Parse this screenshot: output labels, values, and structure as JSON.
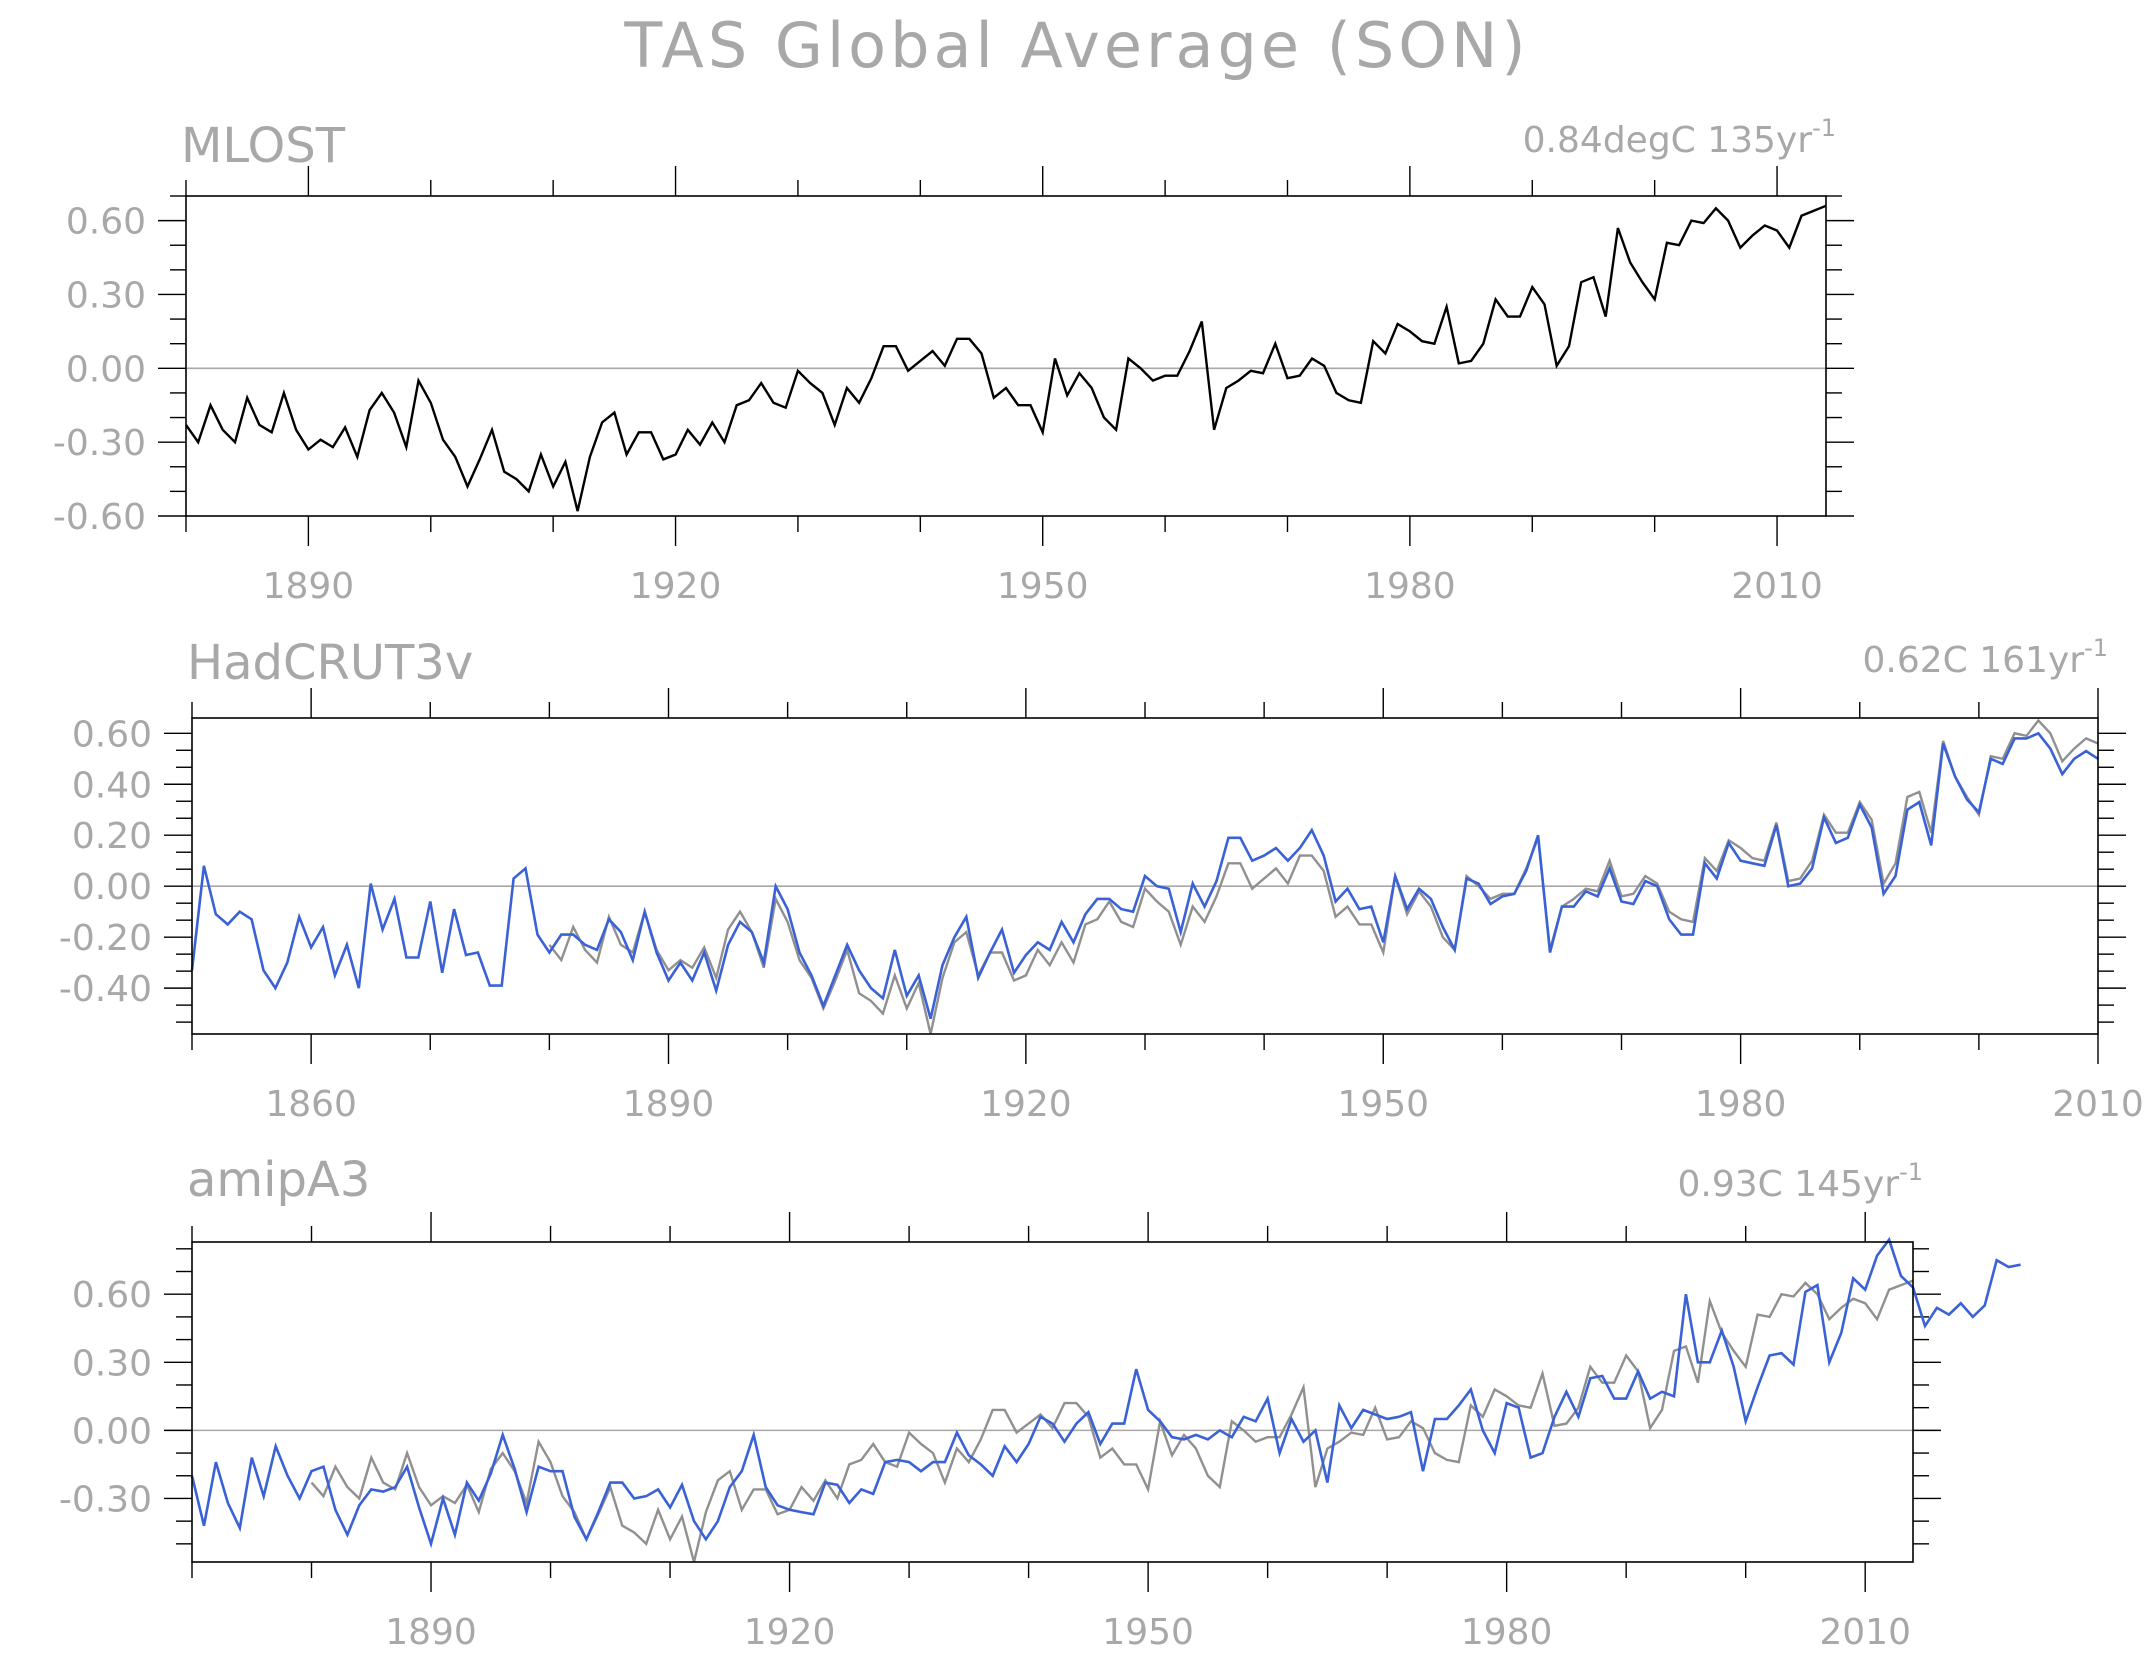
{
  "title": "TAS Global Average (SON)",
  "colors": {
    "obs": "#000000",
    "ref": "#909090",
    "model": "#3a62d6",
    "text": "#a8a8a8"
  },
  "chart_data": [
    {
      "type": "line",
      "name": "MLOST",
      "trend_text": "0.84degC 135yr",
      "trend_sup": "-1",
      "xlim": [
        1880,
        2014
      ],
      "ylim": [
        -0.6,
        0.7
      ],
      "xticks": [
        1890,
        1920,
        1950,
        1980,
        2010
      ],
      "yticks": [
        -0.6,
        -0.3,
        0.0,
        0.3,
        0.6
      ],
      "yticklabels": [
        "-0.60",
        "-0.30",
        "0.00",
        "0.30",
        "0.60"
      ],
      "start_year": 1880,
      "series": [
        {
          "style": "obs",
          "values": [
            -0.23,
            -0.3,
            -0.15,
            -0.25,
            -0.3,
            -0.12,
            -0.23,
            -0.26,
            -0.1,
            -0.25,
            -0.33,
            -0.29,
            -0.32,
            -0.24,
            -0.36,
            -0.17,
            -0.1,
            -0.18,
            -0.32,
            -0.05,
            -0.14,
            -0.29,
            -0.36,
            -0.48,
            -0.37,
            -0.25,
            -0.42,
            -0.45,
            -0.5,
            -0.35,
            -0.48,
            -0.38,
            -0.58,
            -0.36,
            -0.22,
            -0.18,
            -0.35,
            -0.26,
            -0.26,
            -0.37,
            -0.35,
            -0.25,
            -0.31,
            -0.22,
            -0.3,
            -0.15,
            -0.13,
            -0.06,
            -0.14,
            -0.16,
            -0.01,
            -0.06,
            -0.1,
            -0.23,
            -0.08,
            -0.14,
            -0.04,
            0.09,
            0.09,
            -0.01,
            0.03,
            0.07,
            0.01,
            0.12,
            0.12,
            0.06,
            -0.12,
            -0.08,
            -0.15,
            -0.15,
            -0.26,
            0.04,
            -0.11,
            -0.02,
            -0.08,
            -0.2,
            -0.25,
            0.04,
            0.0,
            -0.05,
            -0.03,
            -0.03,
            0.07,
            0.19,
            -0.25,
            -0.08,
            -0.05,
            -0.01,
            -0.02,
            0.1,
            -0.04,
            -0.03,
            0.04,
            0.01,
            -0.1,
            -0.13,
            -0.14,
            0.11,
            0.06,
            0.18,
            0.15,
            0.11,
            0.1,
            0.25,
            0.02,
            0.03,
            0.1,
            0.28,
            0.21,
            0.21,
            0.33,
            0.26,
            0.01,
            0.09,
            0.35,
            0.37,
            0.21,
            0.57,
            0.43,
            0.35,
            0.28,
            0.51,
            0.5,
            0.6,
            0.59,
            0.65,
            0.6,
            0.49,
            0.54,
            0.58,
            0.56,
            0.49,
            0.62,
            0.64,
            0.66
          ]
        }
      ]
    },
    {
      "type": "line",
      "name": "HadCRUT3v",
      "trend_text": "0.62C 161yr",
      "trend_sup": "-1",
      "xlim": [
        1850,
        2010
      ],
      "ylim": [
        -0.58,
        0.66
      ],
      "xticks": [
        1860,
        1890,
        1920,
        1950,
        1980,
        2010
      ],
      "yticks": [
        -0.4,
        -0.2,
        0.0,
        0.2,
        0.4,
        0.6
      ],
      "yticklabels": [
        "-0.40",
        "-0.20",
        "0.00",
        "0.20",
        "0.40",
        "0.60"
      ],
      "series": [
        {
          "style": "ref",
          "start_year": 1880,
          "values": [
            -0.23,
            -0.29,
            -0.16,
            -0.25,
            -0.3,
            -0.12,
            -0.23,
            -0.26,
            -0.1,
            -0.25,
            -0.33,
            -0.29,
            -0.32,
            -0.24,
            -0.36,
            -0.17,
            -0.1,
            -0.18,
            -0.32,
            -0.05,
            -0.14,
            -0.29,
            -0.36,
            -0.48,
            -0.37,
            -0.25,
            -0.42,
            -0.45,
            -0.5,
            -0.35,
            -0.48,
            -0.38,
            -0.58,
            -0.36,
            -0.22,
            -0.18,
            -0.35,
            -0.26,
            -0.26,
            -0.37,
            -0.35,
            -0.25,
            -0.31,
            -0.22,
            -0.3,
            -0.15,
            -0.13,
            -0.06,
            -0.14,
            -0.16,
            -0.01,
            -0.06,
            -0.1,
            -0.23,
            -0.08,
            -0.14,
            -0.04,
            0.09,
            0.09,
            -0.01,
            0.03,
            0.07,
            0.01,
            0.12,
            0.12,
            0.06,
            -0.12,
            -0.08,
            -0.15,
            -0.15,
            -0.26,
            0.04,
            -0.11,
            -0.02,
            -0.08,
            -0.2,
            -0.25,
            0.04,
            0.0,
            -0.05,
            -0.03,
            -0.03,
            0.07,
            0.19,
            -0.25,
            -0.08,
            -0.05,
            -0.01,
            -0.02,
            0.1,
            -0.04,
            -0.03,
            0.04,
            0.01,
            -0.1,
            -0.13,
            -0.14,
            0.11,
            0.06,
            0.18,
            0.15,
            0.11,
            0.1,
            0.25,
            0.02,
            0.03,
            0.1,
            0.28,
            0.21,
            0.21,
            0.33,
            0.26,
            0.01,
            0.09,
            0.35,
            0.37,
            0.21,
            0.57,
            0.43,
            0.35,
            0.28,
            0.51,
            0.5,
            0.6,
            0.59,
            0.65,
            0.6,
            0.49,
            0.54,
            0.58,
            0.56
          ]
        },
        {
          "style": "model",
          "start_year": 1850,
          "values": [
            -0.33,
            0.08,
            -0.11,
            -0.15,
            -0.1,
            -0.13,
            -0.33,
            -0.4,
            -0.3,
            -0.12,
            -0.24,
            -0.16,
            -0.35,
            -0.23,
            -0.4,
            0.01,
            -0.17,
            -0.05,
            -0.28,
            -0.28,
            -0.06,
            -0.34,
            -0.09,
            -0.27,
            -0.26,
            -0.39,
            -0.39,
            0.03,
            0.07,
            -0.19,
            -0.26,
            -0.19,
            -0.19,
            -0.23,
            -0.25,
            -0.13,
            -0.18,
            -0.29,
            -0.1,
            -0.26,
            -0.37,
            -0.3,
            -0.37,
            -0.26,
            -0.41,
            -0.23,
            -0.14,
            -0.18,
            -0.3,
            0.0,
            -0.09,
            -0.26,
            -0.35,
            -0.47,
            -0.35,
            -0.23,
            -0.33,
            -0.4,
            -0.44,
            -0.25,
            -0.43,
            -0.35,
            -0.52,
            -0.31,
            -0.2,
            -0.12,
            -0.36,
            -0.26,
            -0.17,
            -0.34,
            -0.27,
            -0.22,
            -0.25,
            -0.14,
            -0.22,
            -0.11,
            -0.05,
            -0.05,
            -0.09,
            -0.1,
            0.04,
            0.0,
            -0.01,
            -0.18,
            0.01,
            -0.08,
            0.02,
            0.19,
            0.19,
            0.1,
            0.12,
            0.15,
            0.1,
            0.15,
            0.22,
            0.12,
            -0.06,
            -0.01,
            -0.09,
            -0.08,
            -0.22,
            0.04,
            -0.09,
            -0.01,
            -0.05,
            -0.16,
            -0.25,
            0.03,
            0.01,
            -0.07,
            -0.04,
            -0.03,
            0.06,
            0.2,
            -0.26,
            -0.08,
            -0.08,
            -0.02,
            -0.04,
            0.07,
            -0.06,
            -0.07,
            0.02,
            0.0,
            -0.13,
            -0.19,
            -0.19,
            0.09,
            0.03,
            0.17,
            0.1,
            0.09,
            0.08,
            0.24,
            0.0,
            0.01,
            0.07,
            0.27,
            0.17,
            0.19,
            0.32,
            0.23,
            -0.03,
            0.04,
            0.3,
            0.33,
            0.16,
            0.56,
            0.43,
            0.34,
            0.29,
            0.5,
            0.48,
            0.58,
            0.58,
            0.6,
            0.54,
            0.44,
            0.5,
            0.53,
            0.5
          ]
        }
      ]
    },
    {
      "type": "line",
      "name": "amipA3",
      "trend_text": "0.93C 145yr",
      "trend_sup": "-1",
      "xlim": [
        1870,
        2014
      ],
      "ylim": [
        -0.58,
        0.83
      ],
      "xticks": [
        1890,
        1920,
        1950,
        1980,
        2010
      ],
      "yticks": [
        -0.3,
        0.0,
        0.3,
        0.6
      ],
      "yticklabels": [
        "-0.30",
        "0.00",
        "0.30",
        "0.60"
      ],
      "series": [
        {
          "style": "ref",
          "start_year": 1880,
          "values": [
            -0.23,
            -0.29,
            -0.16,
            -0.25,
            -0.3,
            -0.12,
            -0.23,
            -0.26,
            -0.1,
            -0.25,
            -0.33,
            -0.29,
            -0.32,
            -0.24,
            -0.36,
            -0.17,
            -0.1,
            -0.18,
            -0.32,
            -0.05,
            -0.14,
            -0.29,
            -0.36,
            -0.48,
            -0.37,
            -0.25,
            -0.42,
            -0.45,
            -0.5,
            -0.35,
            -0.48,
            -0.38,
            -0.58,
            -0.36,
            -0.22,
            -0.18,
            -0.35,
            -0.26,
            -0.26,
            -0.37,
            -0.35,
            -0.25,
            -0.31,
            -0.22,
            -0.3,
            -0.15,
            -0.13,
            -0.06,
            -0.14,
            -0.16,
            -0.01,
            -0.06,
            -0.1,
            -0.23,
            -0.08,
            -0.14,
            -0.04,
            0.09,
            0.09,
            -0.01,
            0.03,
            0.07,
            0.01,
            0.12,
            0.12,
            0.06,
            -0.12,
            -0.08,
            -0.15,
            -0.15,
            -0.26,
            0.04,
            -0.11,
            -0.02,
            -0.08,
            -0.2,
            -0.25,
            0.04,
            0.0,
            -0.05,
            -0.03,
            -0.03,
            0.07,
            0.19,
            -0.25,
            -0.08,
            -0.05,
            -0.01,
            -0.02,
            0.1,
            -0.04,
            -0.03,
            0.04,
            0.01,
            -0.1,
            -0.13,
            -0.14,
            0.11,
            0.06,
            0.18,
            0.15,
            0.11,
            0.1,
            0.25,
            0.02,
            0.03,
            0.1,
            0.28,
            0.21,
            0.21,
            0.33,
            0.26,
            0.01,
            0.09,
            0.35,
            0.37,
            0.21,
            0.57,
            0.43,
            0.35,
            0.28,
            0.51,
            0.5,
            0.6,
            0.59,
            0.65,
            0.6,
            0.49,
            0.54,
            0.58,
            0.56,
            0.49,
            0.62,
            0.64,
            0.66
          ]
        },
        {
          "style": "model",
          "start_year": 1870,
          "values": [
            -0.2,
            -0.42,
            -0.14,
            -0.32,
            -0.43,
            -0.12,
            -0.29,
            -0.07,
            -0.2,
            -0.3,
            -0.18,
            -0.16,
            -0.35,
            -0.46,
            -0.33,
            -0.26,
            -0.27,
            -0.25,
            -0.16,
            -0.34,
            -0.5,
            -0.3,
            -0.46,
            -0.23,
            -0.31,
            -0.19,
            -0.02,
            -0.17,
            -0.36,
            -0.16,
            -0.18,
            -0.18,
            -0.38,
            -0.48,
            -0.36,
            -0.23,
            -0.23,
            -0.3,
            -0.29,
            -0.26,
            -0.34,
            -0.24,
            -0.4,
            -0.48,
            -0.4,
            -0.25,
            -0.18,
            -0.02,
            -0.25,
            -0.33,
            -0.35,
            -0.36,
            -0.37,
            -0.23,
            -0.24,
            -0.32,
            -0.26,
            -0.28,
            -0.14,
            -0.13,
            -0.14,
            -0.18,
            -0.14,
            -0.14,
            -0.01,
            -0.11,
            -0.15,
            -0.2,
            -0.07,
            -0.14,
            -0.06,
            0.06,
            0.03,
            -0.05,
            0.03,
            0.08,
            -0.06,
            0.03,
            0.03,
            0.27,
            0.09,
            0.04,
            -0.03,
            -0.04,
            -0.02,
            -0.04,
            0.0,
            -0.03,
            0.06,
            0.04,
            0.14,
            -0.1,
            0.05,
            -0.05,
            0.0,
            -0.23,
            0.11,
            0.01,
            0.09,
            0.07,
            0.05,
            0.06,
            0.08,
            -0.18,
            0.05,
            0.05,
            0.11,
            0.18,
            0.0,
            -0.1,
            0.12,
            0.1,
            -0.12,
            -0.1,
            0.06,
            0.17,
            0.06,
            0.23,
            0.24,
            0.14,
            0.14,
            0.26,
            0.14,
            0.17,
            0.15,
            0.6,
            0.3,
            0.3,
            0.44,
            0.28,
            0.04,
            0.19,
            0.33,
            0.34,
            0.29,
            0.61,
            0.64,
            0.3,
            0.43,
            0.67,
            0.62,
            0.77,
            0.84,
            0.68,
            0.63,
            0.46,
            0.54,
            0.51,
            0.56,
            0.5,
            0.55,
            0.75,
            0.72,
            0.73
          ]
        }
      ]
    }
  ]
}
